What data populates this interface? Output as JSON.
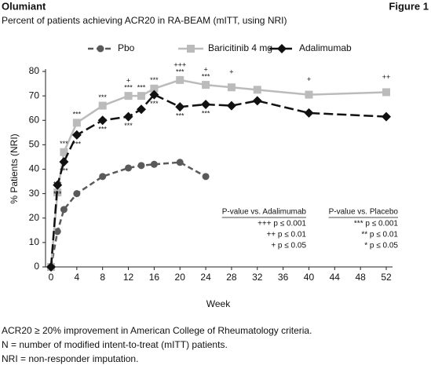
{
  "chart_data": {
    "type": "line",
    "header": "Olumiant",
    "figure_label": "Figure 1",
    "title": "Percent of patients achieving ACR20 in RA-BEAM (mITT, using NRI)",
    "ylabel": "% Patients (NRI)",
    "xlabel": "Week",
    "xlim": [
      0,
      52
    ],
    "xticks": [
      0,
      4,
      8,
      12,
      16,
      20,
      24,
      28,
      32,
      36,
      40,
      44,
      48,
      52
    ],
    "ylim": [
      0,
      80
    ],
    "yticks": [
      0,
      10,
      20,
      30,
      40,
      50,
      60,
      70,
      80
    ],
    "series": [
      {
        "name": "Pbo",
        "color": "#5a5a5a",
        "marker": "circle",
        "dash": "7,4",
        "x": [
          0,
          1,
          2,
          4,
          8,
          12,
          14,
          16,
          20,
          24
        ],
        "values": [
          0,
          14.5,
          23.5,
          30,
          37,
          40.5,
          41.5,
          42,
          42.8,
          37
        ]
      },
      {
        "name": "Baricitinib 4 mg",
        "color": "#bbbbbb",
        "marker": "square",
        "dash": null,
        "x": [
          0,
          1,
          2,
          4,
          8,
          12,
          14,
          16,
          20,
          24,
          28,
          32,
          40,
          52
        ],
        "values": [
          0,
          30.5,
          47,
          59,
          66,
          70,
          70,
          73,
          76.5,
          74.5,
          73.5,
          72.5,
          70.5,
          71.5
        ],
        "star_labels": [
          null,
          "***",
          "***",
          "***",
          "***",
          "***",
          "***",
          "***",
          "***",
          "***",
          null,
          null,
          null,
          null
        ],
        "plus_labels": [
          null,
          null,
          null,
          null,
          null,
          "+",
          null,
          null,
          "+++",
          "+",
          "+",
          null,
          "+",
          "++"
        ]
      },
      {
        "name": "Adalimumab",
        "color": "#111111",
        "marker": "diamond",
        "dash": "12,5",
        "x": [
          0,
          1,
          2,
          4,
          8,
          12,
          14,
          16,
          20,
          24,
          28,
          32,
          40,
          52
        ],
        "values": [
          0,
          33.5,
          43,
          54,
          60,
          61.5,
          64.5,
          70.5,
          65.5,
          66.5,
          66,
          68,
          63,
          61.5
        ],
        "star_labels_below": [
          null,
          "***",
          "***",
          "***",
          "***",
          "***",
          null,
          "***",
          "***",
          "***",
          null,
          null,
          null,
          null
        ]
      }
    ],
    "pvalue_keys": [
      {
        "title": "P-value vs. Adalimumab",
        "items": [
          "+++ p ≤ 0.001",
          "++ p ≤ 0.01",
          "+ p ≤ 0.05"
        ]
      },
      {
        "title": "P-value vs. Placebo",
        "items": [
          "*** p ≤ 0.001",
          "** p ≤ 0.01",
          "* p ≤ 0.05"
        ]
      }
    ],
    "footnotes": [
      "ACR20 ≥ 20% improvement in American College of Rheumatology criteria.",
      "N = number of modified intent-to-treat (mITT) patients.",
      "NRI = non-responder imputation."
    ]
  }
}
